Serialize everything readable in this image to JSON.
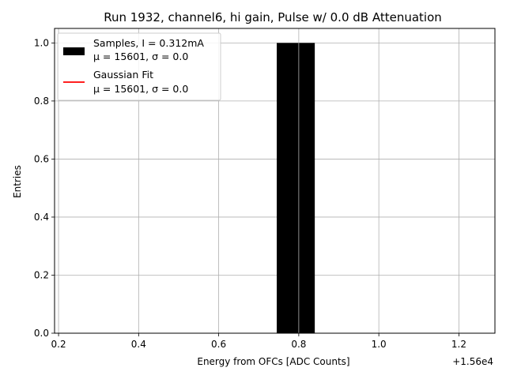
{
  "chart_data": {
    "type": "bar",
    "title": "Run 1932, channel6, hi gain, Pulse w/ 0.0 dB Attenuation",
    "xlabel": "Energy from OFCs [ADC Counts]",
    "ylabel": "Entries",
    "x_offset_label": "+1.56e4",
    "xlim": [
      0.19,
      1.29
    ],
    "ylim": [
      0,
      1.05
    ],
    "x_ticks": [
      0.2,
      0.4,
      0.6,
      0.8,
      1.0,
      1.2
    ],
    "x_tick_labels": [
      "0.2",
      "0.4",
      "0.6",
      "0.8",
      "1.0",
      "1.2"
    ],
    "y_ticks": [
      0.0,
      0.2,
      0.4,
      0.6,
      0.8,
      1.0
    ],
    "y_tick_labels": [
      "0.0",
      "0.2",
      "0.4",
      "0.6",
      "0.8",
      "1.0"
    ],
    "grid": true,
    "legend_position": "top-left",
    "bars": [
      {
        "x_left": 0.745,
        "x_right": 0.84,
        "value": 1.0,
        "color": "#000000"
      }
    ],
    "series": [
      {
        "name": "Samples, I = 0.312mA",
        "stats": "μ = 15601, σ = 0.0",
        "type": "bar",
        "color": "#000000"
      },
      {
        "name": "Gaussian Fit",
        "stats": "μ = 15601, σ = 0.0",
        "type": "line",
        "color": "#ff0000"
      }
    ]
  }
}
